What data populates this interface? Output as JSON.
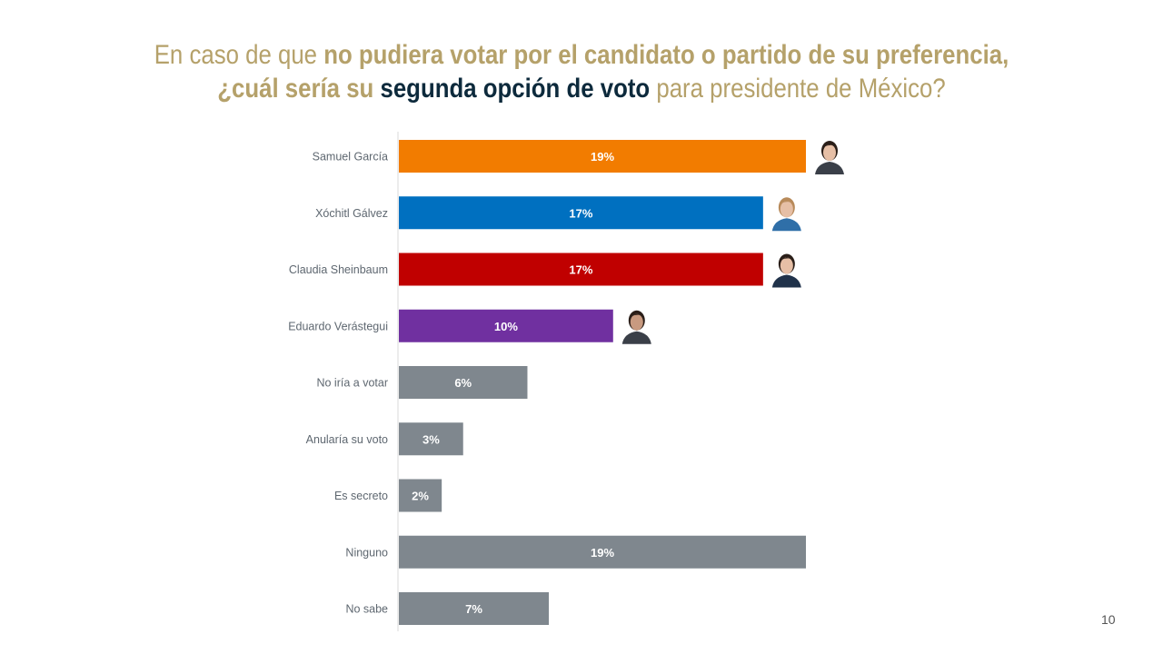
{
  "title": {
    "lines": [
      [
        {
          "text": "En caso de que ",
          "style": "normal"
        },
        {
          "text": "no pudiera votar por el candidato o partido de su preferencia,",
          "style": "bold"
        }
      ],
      [
        {
          "text": "¿cuál sería su ",
          "style": "bold"
        },
        {
          "text": "segunda opción de voto",
          "style": "navy"
        },
        {
          "text": " para presidente de México?",
          "style": "normal"
        }
      ]
    ]
  },
  "page_number": "10",
  "colors": {
    "title_gold": "#B5A16A",
    "title_navy": "#0D2A3C",
    "axis": "#D9D9D9"
  },
  "chart_data": {
    "type": "bar",
    "orientation": "horizontal",
    "categories": [
      "Samuel García",
      "Xóchitl Gálvez",
      "Claudia Sheinbaum",
      "Eduardo Verástegui",
      "No iría a votar",
      "Anularía su voto",
      "Es secreto",
      "Ninguno",
      "No sabe"
    ],
    "values": [
      19,
      17,
      17,
      10,
      6,
      3,
      2,
      19,
      7
    ],
    "data_labels": [
      "19%",
      "17%",
      "17%",
      "10%",
      "6%",
      "3%",
      "2%",
      "19%",
      "7%"
    ],
    "bar_colors": [
      "#F27C00",
      "#0070C0",
      "#C00000",
      "#7030A0",
      "#7F878E",
      "#7F878E",
      "#7F878E",
      "#7F878E",
      "#7F878E"
    ],
    "candidate_photos": [
      true,
      true,
      true,
      true,
      false,
      false,
      false,
      false,
      false
    ],
    "unit": "%",
    "xlim": [
      0,
      19
    ],
    "grid": false,
    "legend": "none"
  }
}
